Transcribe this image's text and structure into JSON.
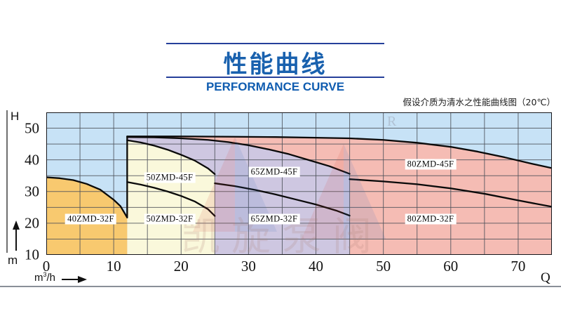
{
  "header": {
    "title": "性能曲线",
    "subtitle": "PERFORMANCE CURVE",
    "accent_color": "#1961ae"
  },
  "note": "假设介质为清水之性能曲线图（20℃）",
  "axes": {
    "y_symbol": "H",
    "y_unit": "m",
    "x_unit_base": "m",
    "x_unit_sup": "3",
    "x_unit_slash": "/h",
    "x_symbol": "Q",
    "y_ticks": [
      50,
      40,
      30,
      20,
      10
    ],
    "x_ticks": [
      0,
      10,
      20,
      30,
      40,
      50,
      60,
      70
    ]
  },
  "watermark": {
    "text": "凯旋泵阀",
    "mark": "R"
  },
  "chart_data": {
    "type": "area",
    "title": "性能曲线 / PERFORMANCE CURVE",
    "note": "假设介质为清水之性能曲线图（20℃）",
    "xlabel": "Q (m3/h)",
    "ylabel": "H (m)",
    "xlim": [
      0,
      75
    ],
    "ylim": [
      10,
      55
    ],
    "grid": true,
    "grid_step": 5,
    "background": "#C7E2F6",
    "grid_color": "#4e525a",
    "curve_color": "#0a0a0a",
    "border_color": "#17171c",
    "legend_position": "in-plot labels",
    "regions": [
      {
        "name": "40ZMD",
        "fill": "#F8C96F",
        "x_range": [
          0,
          12
        ],
        "top_curve": {
          "label": "40ZMD-32F",
          "label_at": [
            6.6,
            21.4
          ],
          "points": [
            [
              0,
              34.5
            ],
            [
              2,
              34.2
            ],
            [
              4,
              33.6
            ],
            [
              6,
              32.4
            ],
            [
              8,
              30.6
            ],
            [
              10,
              27.4
            ],
            [
              11,
              25.4
            ],
            [
              12,
              21.8
            ]
          ]
        },
        "curves": []
      },
      {
        "name": "50ZMD",
        "fill": "#FAF8DB",
        "x_range": [
          12,
          25
        ],
        "top_curve": {
          "label": "50ZMD-45F",
          "label_at": [
            18.3,
            34.4
          ],
          "points": [
            [
              12,
              46.2
            ],
            [
              14,
              45.5
            ],
            [
              16,
              44.5
            ],
            [
              18,
              43.2
            ],
            [
              20,
              41.6
            ],
            [
              22,
              39.8
            ],
            [
              24,
              37.3
            ],
            [
              25,
              35.5
            ]
          ]
        },
        "curves": [
          {
            "label": "50ZMD-32F",
            "label_at": [
              18.3,
              21.4
            ],
            "points": [
              [
                12,
                33.0
              ],
              [
                14,
                32.2
              ],
              [
                16,
                31.2
              ],
              [
                18,
                30.0
              ],
              [
                20,
                28.6
              ],
              [
                22,
                26.9
              ],
              [
                24,
                24.4
              ],
              [
                25,
                22.3
              ]
            ]
          }
        ]
      },
      {
        "name": "65ZMD",
        "fill": "#CEC7E1",
        "x_range": [
          12,
          45
        ],
        "top_curve": {
          "label": "65ZMD-45F",
          "label_at": [
            33.8,
            36.2
          ],
          "points": [
            [
              12,
              47.2
            ],
            [
              16,
              47.1
            ],
            [
              20,
              46.8
            ],
            [
              24,
              46.3
            ],
            [
              27,
              45.6
            ],
            [
              30,
              44.6
            ],
            [
              33,
              43.3
            ],
            [
              36,
              41.8
            ],
            [
              39,
              39.9
            ],
            [
              42,
              38.0
            ],
            [
              45,
              35.6
            ]
          ]
        },
        "curves": [
          {
            "label": "65ZMD-32F",
            "label_at": [
              33.8,
              21.4
            ],
            "points": [
              [
                25,
                32.6
              ],
              [
                28,
                31.7
              ],
              [
                31,
                30.5
              ],
              [
                34,
                29.1
              ],
              [
                37,
                27.5
              ],
              [
                40,
                25.9
              ],
              [
                43,
                24.0
              ],
              [
                45,
                22.4
              ]
            ]
          }
        ]
      },
      {
        "name": "80ZMD",
        "fill": "#F5BCB4",
        "x_range": [
          12,
          75
        ],
        "top_curve": {
          "label": "80ZMD-45F",
          "label_at": [
            57.0,
            38.6
          ],
          "points": [
            [
              12,
              47.4
            ],
            [
              20,
              47.4
            ],
            [
              28,
              47.3
            ],
            [
              34,
              47.2
            ],
            [
              40,
              47.0
            ],
            [
              45,
              46.8
            ],
            [
              50,
              46.3
            ],
            [
              55,
              45.4
            ],
            [
              60,
              44.1
            ],
            [
              64,
              42.6
            ],
            [
              68,
              40.8
            ],
            [
              72,
              38.8
            ],
            [
              75,
              37.4
            ]
          ]
        },
        "curves": [
          {
            "label": "80ZMD-32F",
            "label_at": [
              57.0,
              21.3
            ],
            "points": [
              [
                45,
                33.9
              ],
              [
                50,
                33.2
              ],
              [
                55,
                32.3
              ],
              [
                60,
                31.0
              ],
              [
                65,
                29.3
              ],
              [
                70,
                27.2
              ],
              [
                75,
                25.2
              ]
            ]
          }
        ]
      }
    ],
    "edges": [
      {
        "name": "stack-left-edge",
        "points": [
          [
            12,
            47.4
          ],
          [
            12,
            21.8
          ]
        ]
      }
    ]
  }
}
